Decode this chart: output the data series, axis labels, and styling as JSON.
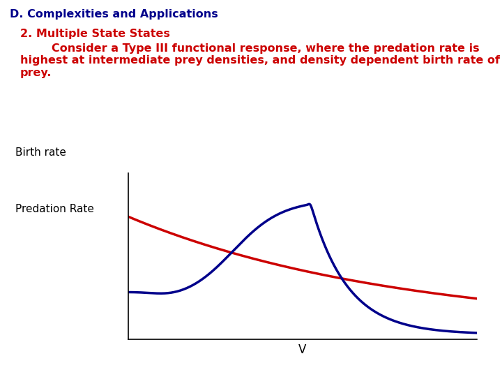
{
  "title_main": "D. Complexities and Applications",
  "title_main_color": "#00008B",
  "subtitle_line1": "2. Multiple State States",
  "subtitle_body": "        Consider a Type III functional response, where the predation rate is\nhighest at intermediate prey densities, and density dependent birth rate of\nprey.",
  "subtitle_color": "#CC0000",
  "label_birth": "Birth rate",
  "label_predation": "Predation Rate",
  "xlabel": "V",
  "birth_color": "#CC0000",
  "predation_color": "#00008B",
  "bg_color": "#FFFFFF",
  "title_fontsize": 11.5,
  "subtitle_fontsize": 11.5,
  "label_fontsize": 11,
  "axis_label_fontsize": 12
}
